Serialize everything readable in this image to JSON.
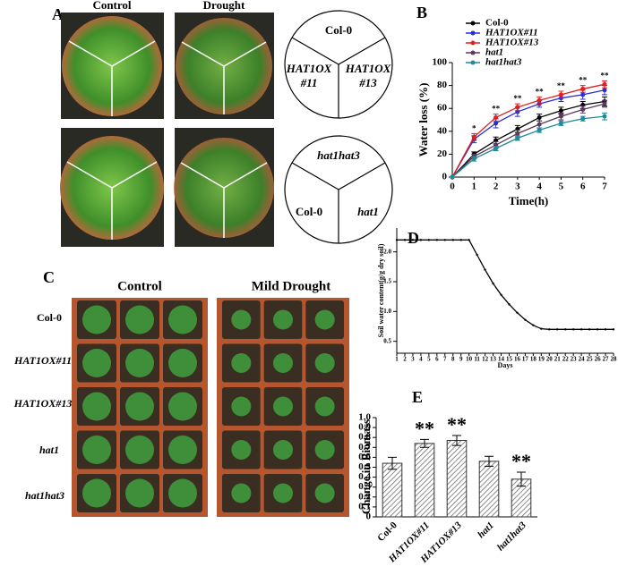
{
  "panels": {
    "A": {
      "letter": "A",
      "control": "Control",
      "drought": "Drought",
      "circle_top": {
        "top": "Col-0",
        "left": [
          "HAT1OX",
          "#11"
        ],
        "right": [
          "HAT1OX",
          "#13"
        ]
      },
      "circle_bottom": {
        "top": "hat1hat3",
        "left": "Col-0",
        "right": "hat1"
      }
    },
    "C": {
      "letter": "C",
      "control": "Control",
      "drought": "Mild Drought",
      "rows": [
        "Col-0",
        "HAT1OX#11",
        "HAT1OX#13",
        "hat1",
        "hat1hat3"
      ]
    }
  },
  "chart_data": [
    {
      "type": "line",
      "panel": "B",
      "ylabel": "Water loss (%)",
      "xlabel": "Time(h)",
      "x": [
        0,
        1,
        2,
        3,
        4,
        5,
        6,
        7
      ],
      "xlim": [
        0,
        7
      ],
      "xticks": [
        0,
        1,
        2,
        3,
        4,
        5,
        6,
        7
      ],
      "ylim": [
        0,
        100
      ],
      "yticks": [
        0,
        20,
        40,
        60,
        80,
        100
      ],
      "series": [
        {
          "name": "Col-0",
          "color": "#000000",
          "values": [
            0,
            20,
            32,
            42,
            52,
            58,
            63,
            66
          ],
          "errors": [
            0,
            2,
            3,
            3,
            3,
            3,
            3,
            4
          ]
        },
        {
          "name": "HAT1OX#11",
          "color": "#2b2bd9",
          "values": [
            0,
            33,
            47,
            57,
            64,
            69,
            72,
            76
          ],
          "errors": [
            0,
            3,
            4,
            4,
            3,
            3,
            4,
            4
          ]
        },
        {
          "name": "HAT1OX#13",
          "color": "#e0201e",
          "values": [
            0,
            35,
            52,
            61,
            67,
            72,
            77,
            81
          ],
          "errors": [
            0,
            3,
            3,
            3,
            3,
            3,
            3,
            3
          ]
        },
        {
          "name": "hat1",
          "color": "#5a3a5a",
          "values": [
            0,
            18,
            28,
            38,
            46,
            53,
            59,
            64
          ],
          "errors": [
            0,
            2,
            3,
            3,
            3,
            3,
            3,
            3
          ]
        },
        {
          "name": "hat1hat3",
          "color": "#1f8a99",
          "values": [
            0,
            16,
            25,
            34,
            41,
            47,
            51,
            53
          ],
          "errors": [
            0,
            2,
            2,
            2,
            2,
            2,
            2,
            3
          ]
        }
      ],
      "annotations": [
        {
          "x": 1,
          "text": "*"
        },
        {
          "x": 2,
          "text": "**"
        },
        {
          "x": 3,
          "text": "**"
        },
        {
          "x": 4,
          "text": "**"
        },
        {
          "x": 5,
          "text": "**"
        },
        {
          "x": 6,
          "text": "**"
        },
        {
          "x": 7,
          "text": "**"
        }
      ]
    },
    {
      "type": "line",
      "panel": "D",
      "ylabel": "Soil water content(g/g dry soil)",
      "xlabel": "Days",
      "color": "#000000",
      "x": [
        1,
        2,
        3,
        4,
        5,
        6,
        7,
        8,
        9,
        10,
        11,
        12,
        13,
        14,
        15,
        16,
        17,
        18,
        19,
        20,
        21,
        22,
        23,
        24,
        25,
        26,
        27,
        28
      ],
      "xlim": [
        1,
        28
      ],
      "xticks": [
        1,
        2,
        3,
        4,
        5,
        6,
        7,
        8,
        9,
        10,
        11,
        12,
        13,
        14,
        15,
        16,
        17,
        18,
        19,
        20,
        21,
        22,
        23,
        24,
        25,
        26,
        27,
        28
      ],
      "values": [
        2.2,
        2.2,
        2.2,
        2.2,
        2.2,
        2.2,
        2.2,
        2.2,
        2.2,
        2.2,
        1.95,
        1.7,
        1.47,
        1.28,
        1.12,
        0.98,
        0.86,
        0.77,
        0.71,
        0.7,
        0.7,
        0.7,
        0.7,
        0.7,
        0.7,
        0.7,
        0.7,
        0.7
      ],
      "ylim": [
        0.3,
        2.4
      ],
      "yticks": [
        0.5,
        {
          "value": 1,
          "label": "1.0"
        },
        1.5,
        {
          "value": 2,
          "label": "2.0"
        }
      ]
    },
    {
      "type": "bar",
      "panel": "E",
      "ylabel": "Change in Biomass",
      "categories": [
        "Col-0",
        "HAT1OX#11",
        "HAT1OX#13",
        "hat1",
        "hat1hat3"
      ],
      "values": [
        0.54,
        0.74,
        0.77,
        0.56,
        0.38
      ],
      "errors": [
        0.06,
        0.04,
        0.05,
        0.05,
        0.07
      ],
      "significance": [
        null,
        "**",
        "**",
        null,
        "**"
      ],
      "ylim": [
        0,
        1
      ],
      "yticks": [
        0,
        0.1,
        0.2,
        0.3,
        0.4,
        0.5,
        0.6,
        0.7,
        0.8,
        0.9,
        {
          "value": 1,
          "label": "1.0"
        }
      ]
    }
  ]
}
